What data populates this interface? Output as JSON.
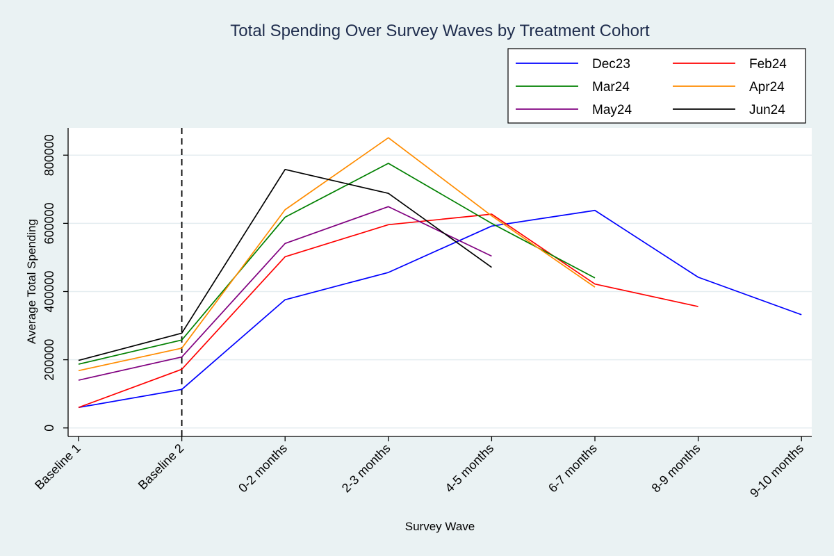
{
  "chart_data": {
    "type": "line",
    "title": "Total Spending Over Survey Waves by Treatment Cohort",
    "xlabel": "Survey Wave",
    "ylabel": "Average Total Spending",
    "categories": [
      "Baseline 1",
      "Baseline 2",
      "0-2 months",
      "2-3 months",
      "4-5 months",
      "6-7 months",
      "8-9 months",
      "9-10 months"
    ],
    "yticks": [
      "0",
      "200000",
      "400000",
      "600000",
      "800000"
    ],
    "ylim": [
      -25000,
      880000
    ],
    "grid": true,
    "legend_position": "top-right",
    "reference_line": {
      "category": "Baseline 2",
      "style": "dashed"
    },
    "series": [
      {
        "name": "Dec23",
        "color": "#0000ff",
        "values": [
          60000,
          113000,
          376000,
          456000,
          592000,
          638000,
          442000,
          332000
        ]
      },
      {
        "name": "Feb24",
        "color": "#ff0000",
        "values": [
          60000,
          172000,
          502000,
          596000,
          627000,
          422000,
          356000,
          null
        ]
      },
      {
        "name": "Mar24",
        "color": "#008000",
        "values": [
          187000,
          258000,
          618000,
          776000,
          600000,
          440000,
          null,
          null
        ]
      },
      {
        "name": "Apr24",
        "color": "#ff8c00",
        "values": [
          168000,
          234000,
          640000,
          851000,
          622000,
          413000,
          null,
          null
        ]
      },
      {
        "name": "May24",
        "color": "#800080",
        "values": [
          140000,
          208000,
          541000,
          649000,
          504000,
          null,
          null,
          null
        ]
      },
      {
        "name": "Jun24",
        "color": "#000000",
        "values": [
          198000,
          278000,
          758000,
          688000,
          471000,
          null,
          null,
          null
        ]
      }
    ]
  }
}
